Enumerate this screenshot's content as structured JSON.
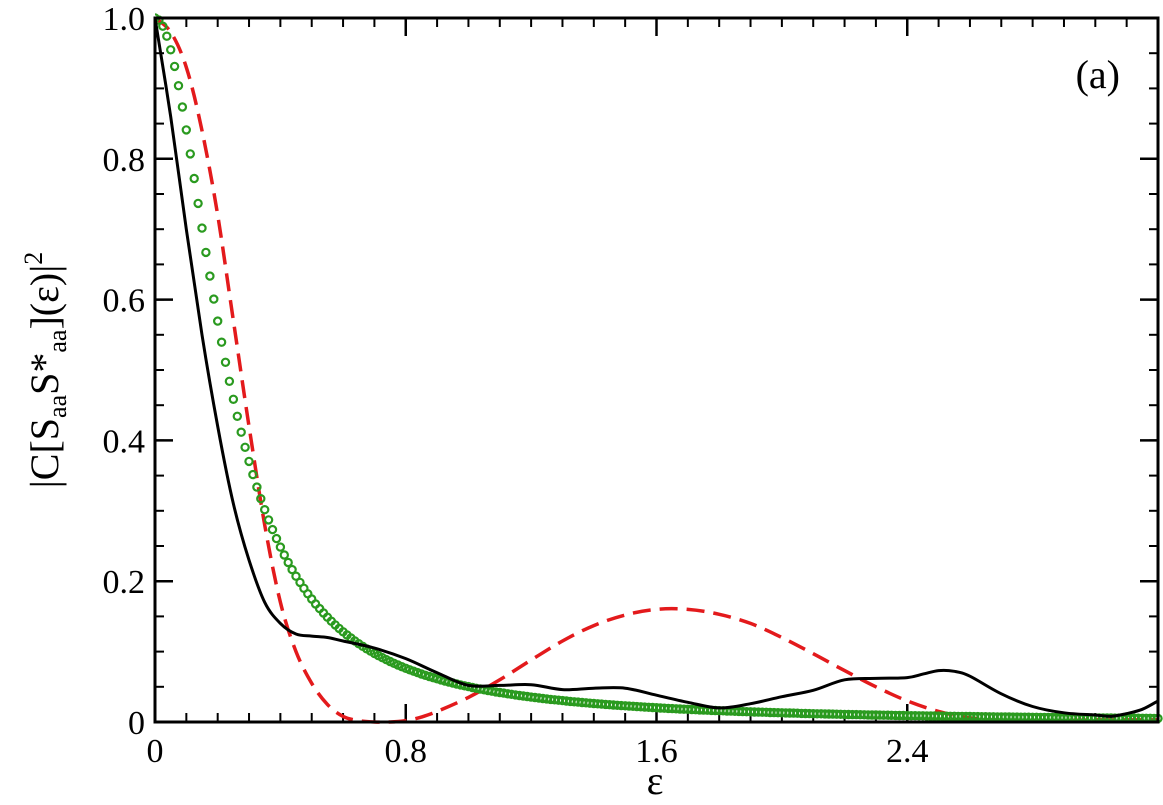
{
  "chart_data": {
    "type": "line",
    "title": "",
    "panel_label": "(a)",
    "xlabel": "ε",
    "ylabel": {
      "prefix": "|C[S",
      "sub1": "aa",
      "mid": "S*",
      "sub2": "aa",
      "suffix": "](ε)|",
      "sup": "2"
    },
    "xlim": [
      0,
      3.2
    ],
    "ylim": [
      0,
      1.0
    ],
    "x_ticks": [
      0,
      0.8,
      1.6,
      2.4
    ],
    "x_tick_labels": [
      "0",
      "0.8",
      "1.6",
      "2.4"
    ],
    "y_ticks": [
      0,
      0.2,
      0.4,
      0.6,
      0.8,
      1.0
    ],
    "y_tick_labels": [
      "0",
      "0.2",
      "0.4",
      "0.6",
      "0.8",
      "1.0"
    ],
    "x_minor_step": 0.1,
    "y_minor_step": 0.05,
    "grid": false,
    "legend": "none",
    "series": [
      {
        "style": "solid",
        "color": "#000000",
        "x": [
          0,
          0.05,
          0.1,
          0.15,
          0.2,
          0.25,
          0.3,
          0.35,
          0.4,
          0.45,
          0.5,
          0.55,
          0.6,
          0.7,
          0.8,
          0.9,
          1.0,
          1.1,
          1.2,
          1.3,
          1.4,
          1.5,
          1.6,
          1.7,
          1.8,
          1.9,
          2.0,
          2.1,
          2.2,
          2.3,
          2.4,
          2.45,
          2.5,
          2.55,
          2.6,
          2.7,
          2.8,
          2.9,
          3.0,
          3.05,
          3.1,
          3.15,
          3.2
        ],
        "y": [
          1.0,
          0.86,
          0.7,
          0.55,
          0.42,
          0.31,
          0.23,
          0.17,
          0.14,
          0.125,
          0.122,
          0.12,
          0.115,
          0.105,
          0.09,
          0.07,
          0.052,
          0.052,
          0.053,
          0.046,
          0.048,
          0.048,
          0.038,
          0.028,
          0.02,
          0.026,
          0.036,
          0.045,
          0.06,
          0.062,
          0.063,
          0.068,
          0.073,
          0.072,
          0.065,
          0.04,
          0.022,
          0.013,
          0.01,
          0.008,
          0.012,
          0.018,
          0.03
        ]
      },
      {
        "style": "dashed",
        "color": "#e31a1c",
        "x": [
          0,
          0.05,
          0.1,
          0.15,
          0.2,
          0.25,
          0.3,
          0.35,
          0.4,
          0.45,
          0.5,
          0.55,
          0.6,
          0.65,
          0.7,
          0.75,
          0.8,
          0.85,
          0.9,
          1.0,
          1.1,
          1.2,
          1.3,
          1.4,
          1.5,
          1.6,
          1.7,
          1.8,
          1.9,
          2.0,
          2.1,
          2.2,
          2.3,
          2.4,
          2.5,
          2.6,
          2.7,
          2.8,
          2.9,
          3.0,
          3.1,
          3.2
        ],
        "y": [
          1.0,
          0.98,
          0.93,
          0.84,
          0.72,
          0.57,
          0.42,
          0.28,
          0.17,
          0.1,
          0.055,
          0.025,
          0.008,
          0.002,
          0.0,
          0.0,
          0.002,
          0.007,
          0.015,
          0.035,
          0.06,
          0.088,
          0.115,
          0.137,
          0.152,
          0.16,
          0.16,
          0.153,
          0.14,
          0.12,
          0.097,
          0.073,
          0.05,
          0.03,
          0.015,
          0.006,
          0.002,
          0.001,
          0.002,
          0.003,
          0.003,
          0.003
        ]
      },
      {
        "style": "circles",
        "color": "#2a9a1f",
        "model": "lorentzian",
        "gamma": 0.23,
        "x_step": 0.0125,
        "x_range": [
          0,
          3.2
        ]
      }
    ]
  }
}
